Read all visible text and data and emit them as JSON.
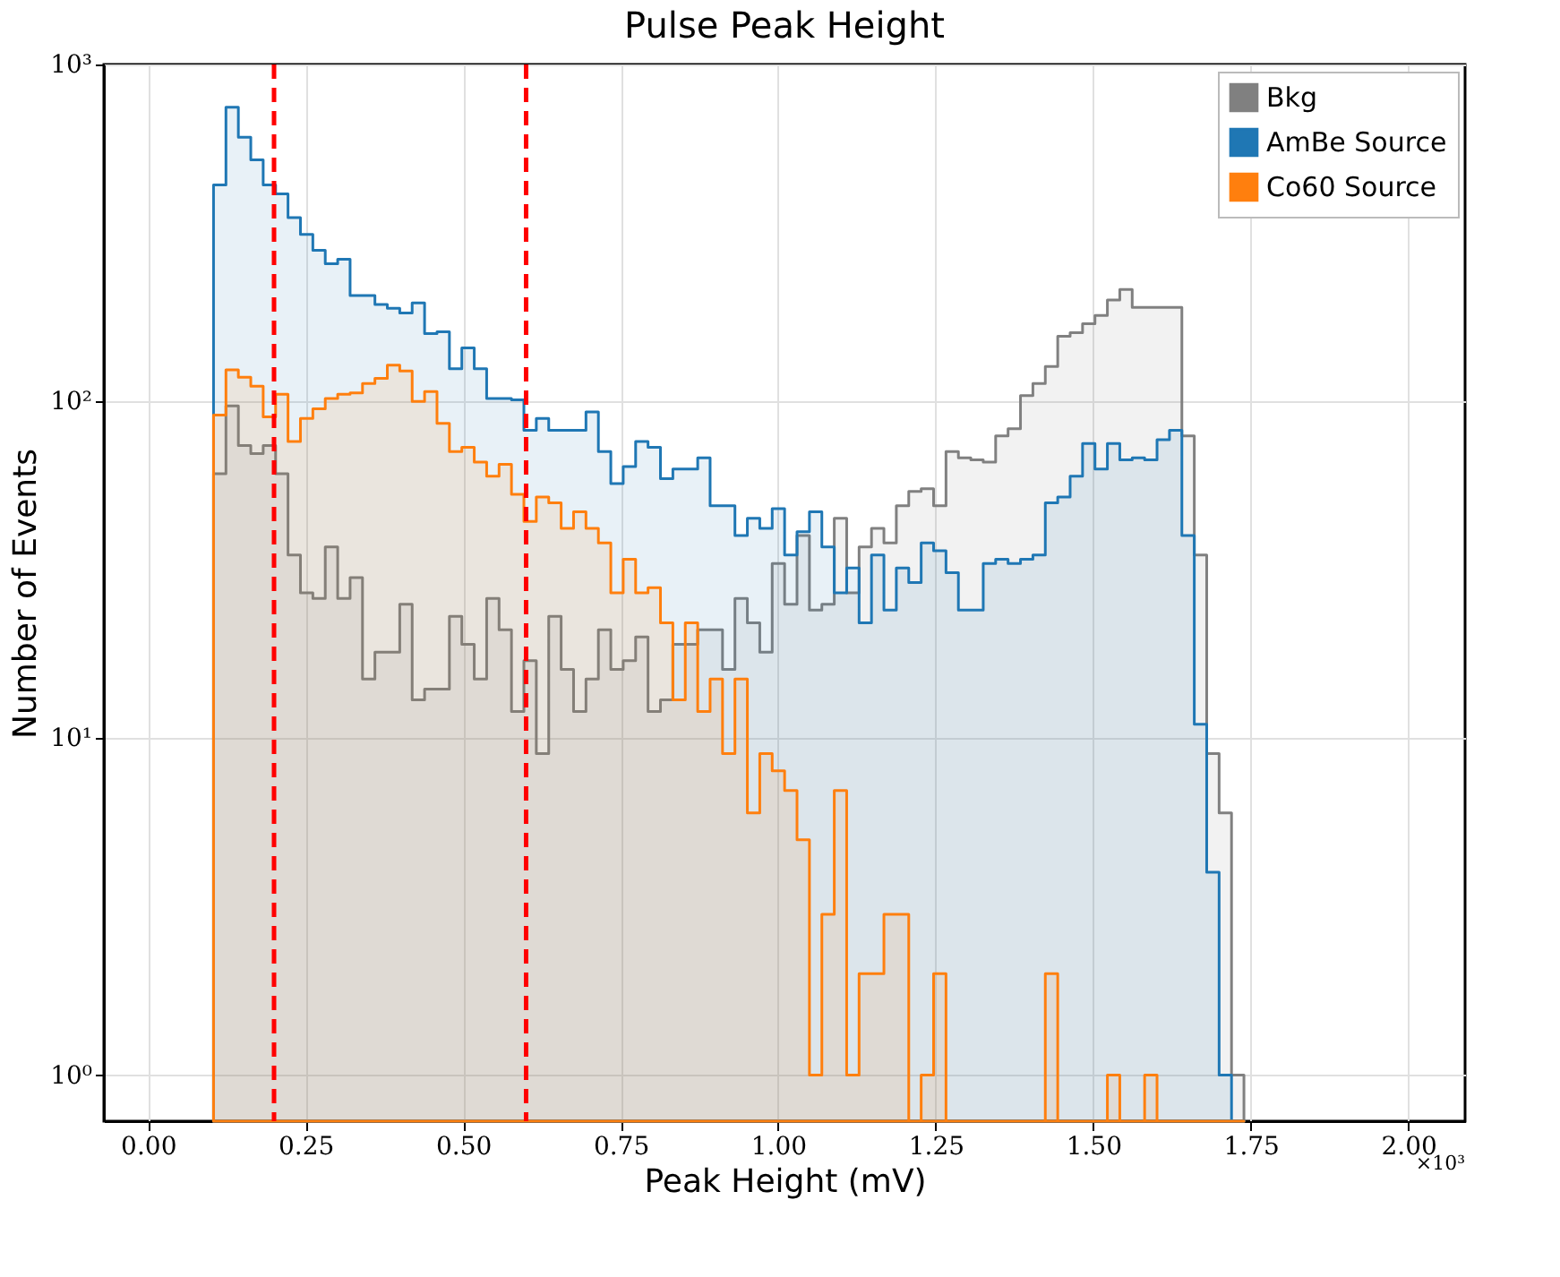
{
  "chart_data": {
    "type": "histogram",
    "title": "Pulse Peak Height",
    "xlabel": "Peak Height (mV)",
    "ylabel": "Number of Events",
    "bins": [
      0.104,
      0.1237,
      0.1434,
      0.1631,
      0.1828,
      0.2025,
      0.2222,
      0.2419,
      0.2616,
      0.2813,
      0.301,
      0.3207,
      0.3404,
      0.3601,
      0.3798,
      0.3995,
      0.4192,
      0.4389,
      0.4586,
      0.4783,
      0.498,
      0.5177,
      0.5374,
      0.5571,
      0.5768,
      0.5965,
      0.6162,
      0.6359,
      0.6556,
      0.6753,
      0.695,
      0.7147,
      0.7344,
      0.7541,
      0.7738,
      0.7935,
      0.8132,
      0.8329,
      0.8526,
      0.8723,
      0.892,
      0.9117,
      0.9314,
      0.9511,
      0.9708,
      0.9905,
      1.0102,
      1.0299,
      1.0496,
      1.0693,
      1.089,
      1.1087,
      1.1284,
      1.1481,
      1.1678,
      1.1875,
      1.2072,
      1.2269,
      1.2466,
      1.2663,
      1.286,
      1.3057,
      1.3254,
      1.3451,
      1.3648,
      1.3845,
      1.4042,
      1.4239,
      1.4436,
      1.4633,
      1.483,
      1.5027,
      1.5224,
      1.5421,
      1.5618,
      1.5815,
      1.6012,
      1.6209,
      1.6406,
      1.6603,
      1.68,
      1.6997,
      1.7194,
      1.7391
    ],
    "series": [
      {
        "name": "Bkg",
        "color": "#808080",
        "values": [
          61,
          97,
          74,
          70,
          74,
          61,
          35,
          27,
          26,
          37,
          26,
          30,
          15,
          18,
          18,
          25,
          13,
          14,
          14,
          23,
          19,
          15,
          26,
          21,
          12,
          17,
          9,
          23,
          16,
          12,
          15,
          21,
          16,
          17,
          20,
          12,
          13,
          19,
          19,
          21,
          21,
          16,
          26,
          22,
          18,
          33,
          25,
          40,
          24,
          25,
          45,
          27,
          37,
          42,
          38,
          49,
          54,
          55,
          49,
          71,
          68,
          67,
          66,
          79,
          83,
          104,
          113,
          127,
          156,
          160,
          170,
          180,
          200,
          215,
          190,
          190,
          190,
          190,
          79,
          35,
          9,
          6,
          1
        ]
      },
      {
        "name": "AmBe Source",
        "color": "#1f77b4",
        "values": [
          439,
          746,
          608,
          521,
          439,
          413,
          351,
          313,
          281,
          256,
          264,
          206,
          206,
          194,
          189,
          183,
          196,
          159,
          161,
          125,
          144,
          125,
          102,
          102,
          101,
          82,
          89,
          82,
          82,
          82,
          93,
          71,
          57,
          64,
          76,
          73,
          59,
          63,
          63,
          68,
          49,
          49,
          40,
          45,
          42,
          48,
          35,
          41,
          47,
          37,
          27,
          32,
          22,
          35,
          24,
          32,
          29,
          38,
          36,
          31,
          24,
          24,
          33,
          34,
          33,
          34,
          35,
          50,
          52,
          60,
          75,
          63,
          75,
          67,
          68,
          67,
          77,
          82,
          40,
          11,
          4,
          1,
          null
        ]
      },
      {
        "name": "Co60 Source",
        "color": "#ff7f0e",
        "values": [
          91,
          124,
          118,
          111,
          90,
          105,
          76,
          89,
          95,
          102,
          105,
          106,
          113,
          117,
          128,
          123,
          100,
          107,
          86,
          71,
          73,
          66,
          60,
          65,
          53,
          44,
          52,
          50,
          42,
          47,
          42,
          38,
          27,
          34,
          27,
          28,
          22,
          13,
          22,
          12,
          15,
          9,
          15,
          6,
          9,
          8,
          7,
          5,
          1,
          3,
          7,
          1,
          2,
          2,
          3,
          3,
          null,
          1,
          2,
          null,
          null,
          null,
          null,
          null,
          null,
          null,
          null,
          2,
          null,
          null,
          null,
          null,
          1,
          null,
          null,
          1,
          null,
          null,
          null,
          null,
          null,
          null,
          null
        ]
      }
    ],
    "xlim": [
      -0.07,
      2.09
    ],
    "ylim": [
      0.73,
      1000
    ],
    "xticks": [
      {
        "value": 0,
        "label": "0.00"
      },
      0.25,
      {
        "value": 0.5,
        "label": "0.50"
      },
      0.75,
      {
        "value": 1,
        "label": "1.00"
      },
      1.25,
      {
        "value": 1.5,
        "label": "1.50"
      },
      1.75,
      {
        "value": 2,
        "label": "2.00"
      }
    ],
    "yticks": [
      {
        "value": 1,
        "label": "10⁰"
      },
      {
        "value": 10,
        "label": "10¹"
      },
      {
        "value": 100,
        "label": "10²"
      },
      {
        "value": 1000,
        "label": "10³"
      }
    ],
    "log": "y",
    "grid": true,
    "legend": "top right",
    "ref_lines": [
      {
        "axis": "x",
        "value": 0.2,
        "color": "#ff0000",
        "line_style": "dashed"
      },
      {
        "axis": "x",
        "value": 0.6,
        "color": "#ff0000",
        "line_style": "dashed"
      }
    ],
    "annotations": [
      "×10³"
    ]
  }
}
